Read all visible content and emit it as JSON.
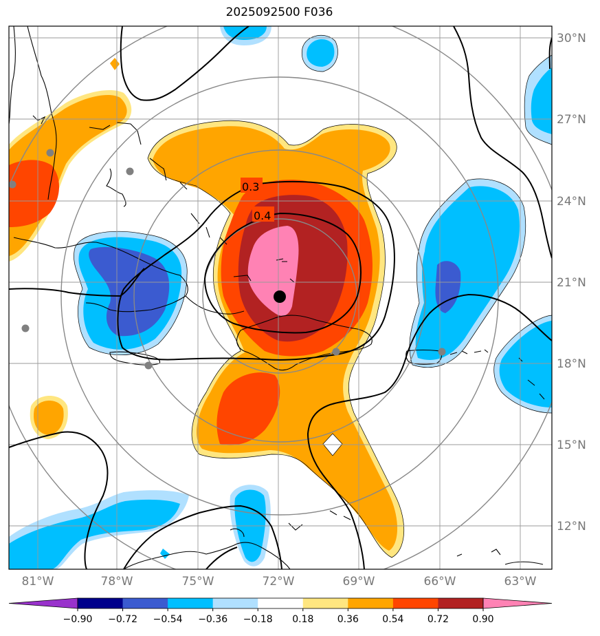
{
  "title": "2025092500 F036",
  "map": {
    "lon_labels": [
      "81°W",
      "78°W",
      "75°W",
      "72°W",
      "69°W",
      "66°W",
      "63°W"
    ],
    "lat_labels": [
      "30°N",
      "27°N",
      "24°N",
      "21°N",
      "18°N",
      "15°N",
      "12°N"
    ],
    "contour_labels": [
      "0.3",
      "0.4"
    ],
    "center_marker": "storm-center"
  },
  "colorbar": {
    "tick_labels": [
      "−0.90",
      "−0.72",
      "−0.54",
      "−0.36",
      "−0.18",
      "0.18",
      "0.36",
      "0.54",
      "0.72",
      "0.90"
    ],
    "colors": [
      "#9932cc",
      "#00008b",
      "#3b5bd0",
      "#00bfff",
      "#b0e0ff",
      "#ffffff",
      "#ffe680",
      "#ffa500",
      "#ff4500",
      "#b22222",
      "#ff82b4"
    ]
  },
  "colors": {
    "grid": "#888888",
    "label": "#777777",
    "coast": "#000000"
  }
}
